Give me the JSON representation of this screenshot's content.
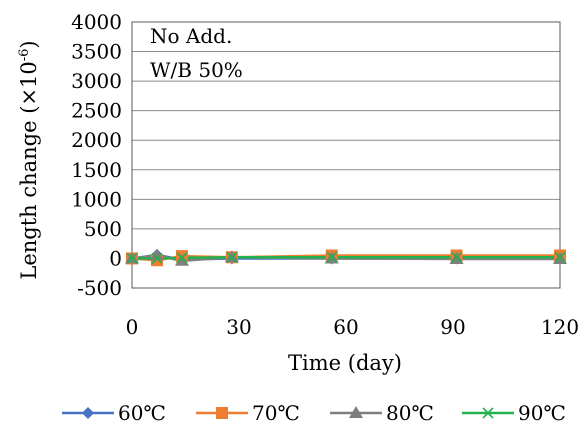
{
  "chart_data": {
    "type": "line",
    "annotations": [
      "No Add.",
      "W/B 50%"
    ],
    "ylabel_main": "Length change (×10",
    "ylabel_exp": "-6",
    "ylabel_close": ")",
    "xlabel": "Time (day)",
    "xlim": [
      0,
      120
    ],
    "ylim": [
      -500,
      4000
    ],
    "xticks": [
      0,
      30,
      60,
      90,
      120
    ],
    "yticks": [
      -500,
      0,
      500,
      1000,
      1500,
      2000,
      2500,
      3000,
      3500,
      4000
    ],
    "grid": "horizontal",
    "legend_position": "bottom",
    "series": [
      {
        "name": "60℃",
        "color": "#4472C4",
        "marker": "diamond",
        "x": [
          0,
          7,
          14,
          28,
          56,
          91,
          120
        ],
        "y": [
          0,
          60,
          -20,
          0,
          0,
          0,
          0
        ]
      },
      {
        "name": "70℃",
        "color": "#ED7D31",
        "marker": "square",
        "x": [
          0,
          7,
          14,
          28,
          56,
          91,
          120
        ],
        "y": [
          0,
          -30,
          40,
          20,
          50,
          50,
          50
        ]
      },
      {
        "name": "80℃",
        "color": "#7F7F7F",
        "marker": "triangle",
        "x": [
          0,
          7,
          14,
          28,
          56,
          91,
          120
        ],
        "y": [
          0,
          50,
          -40,
          20,
          0,
          -10,
          -10
        ]
      },
      {
        "name": "90℃",
        "color": "#22B14C",
        "marker": "x",
        "x": [
          0,
          7,
          14,
          28,
          56,
          91,
          120
        ],
        "y": [
          0,
          0,
          10,
          20,
          20,
          20,
          20
        ]
      }
    ]
  }
}
